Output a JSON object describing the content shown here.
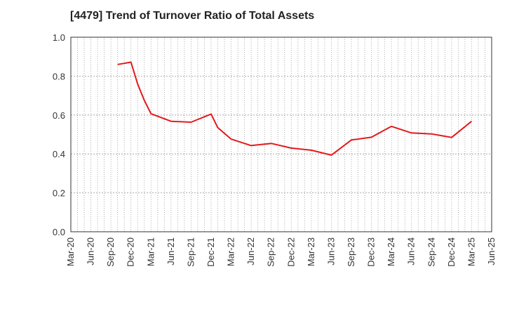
{
  "chart_data": {
    "type": "line",
    "title": "[4479]  Trend of Turnover Ratio of Total Assets",
    "xlabel": "",
    "ylabel": "",
    "ylim": [
      0,
      1.0
    ],
    "yticks": [
      "0.0",
      "0.2",
      "0.4",
      "0.6",
      "0.8",
      "1.0"
    ],
    "xticks": [
      "Mar-20",
      "Jun-20",
      "Sep-20",
      "Dec-20",
      "Mar-21",
      "Jun-21",
      "Sep-21",
      "Dec-21",
      "Mar-22",
      "Jun-22",
      "Sep-22",
      "Dec-22",
      "Mar-23",
      "Jun-23",
      "Sep-23",
      "Dec-23",
      "Mar-24",
      "Jun-24",
      "Sep-24",
      "Dec-24",
      "Mar-25",
      "Jun-25"
    ],
    "grid": true,
    "line_color": "#e31a1c",
    "series": [
      {
        "name": "",
        "x": [
          "Oct-20",
          "Dec-20",
          "Jan-21",
          "Feb-21",
          "Mar-21",
          "Jun-21",
          "Sep-21",
          "Dec-21",
          "Jan-22",
          "Mar-22",
          "Jun-22",
          "Sep-22",
          "Dec-22",
          "Mar-23",
          "Jun-23",
          "Sep-23",
          "Dec-23",
          "Mar-24",
          "Jun-24",
          "Sep-24",
          "Dec-24",
          "Mar-25"
        ],
        "values": [
          0.86,
          0.872,
          0.76,
          0.675,
          0.607,
          0.568,
          0.563,
          0.605,
          0.535,
          0.476,
          0.443,
          0.454,
          0.43,
          0.419,
          0.394,
          0.472,
          0.486,
          0.542,
          0.508,
          0.503,
          0.485,
          0.568
        ]
      }
    ]
  }
}
